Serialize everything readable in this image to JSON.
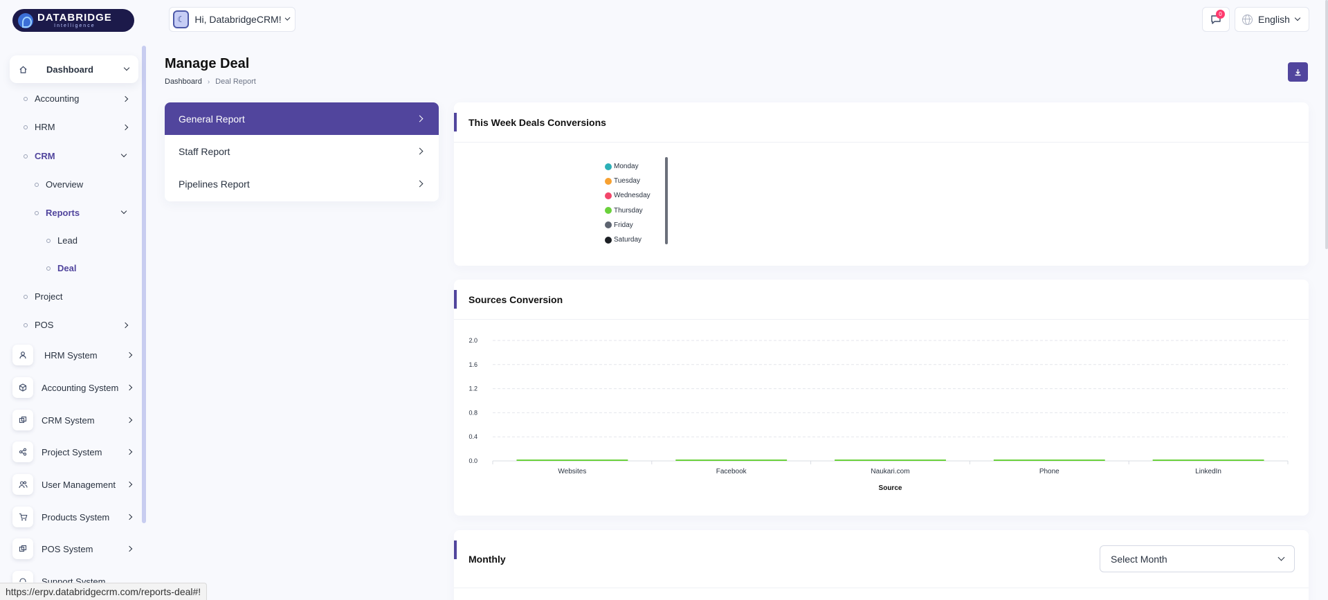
{
  "app": {
    "logo_title": "DATABRIDGE",
    "logo_subtitle": "Intelligence",
    "user_greeting": "Hi, DatabridgeCRM!",
    "notification_count": "0",
    "language": "English",
    "brand_color": "#51459d"
  },
  "sidebar": {
    "dashboard": "Dashboard",
    "subitems": {
      "accounting": "Accounting",
      "hrm": "HRM",
      "crm": "CRM",
      "overview": "Overview",
      "reports": "Reports",
      "lead": "Lead",
      "deal": "Deal",
      "project": "Project",
      "pos": "POS"
    },
    "systems": [
      {
        "label": "HRM System",
        "icon": "user-icon"
      },
      {
        "label": "Accounting System",
        "icon": "box-icon"
      },
      {
        "label": "CRM System",
        "icon": "layers-icon"
      },
      {
        "label": "Project System",
        "icon": "share-icon"
      },
      {
        "label": "User Management",
        "icon": "users-icon"
      },
      {
        "label": "Products System",
        "icon": "cart-icon"
      },
      {
        "label": "POS System",
        "icon": "layers-icon"
      },
      {
        "label": "Support System",
        "icon": "headset-icon"
      }
    ]
  },
  "page": {
    "title": "Manage Deal",
    "breadcrumb": [
      "Dashboard",
      "Deal Report"
    ]
  },
  "report_menu": [
    "General Report",
    "Staff Report",
    "Pipelines Report"
  ],
  "cards": {
    "week": "This Week Deals Conversions",
    "sources": "Sources Conversion",
    "monthly": "Monthly",
    "select_month": "Select Month"
  },
  "week_legend": [
    {
      "label": "Monday",
      "color": "#2cb0b7"
    },
    {
      "label": "Tuesday",
      "color": "#f7a131"
    },
    {
      "label": "Wednesday",
      "color": "#f2466a"
    },
    {
      "label": "Thursday",
      "color": "#6ad13b"
    },
    {
      "label": "Friday",
      "color": "#5d6470"
    },
    {
      "label": "Saturday",
      "color": "#1c1f24"
    }
  ],
  "chart_data": {
    "type": "bar",
    "categories": [
      "Websites",
      "Facebook",
      "Naukari.com",
      "Phone",
      "LinkedIn"
    ],
    "values": [
      0,
      0,
      0,
      0,
      0
    ],
    "xlabel": "Source",
    "ylabel": "",
    "ylim": [
      0,
      2.0
    ],
    "yticks": [
      "0.0",
      "0.4",
      "0.8",
      "1.2",
      "1.6",
      "2.0"
    ],
    "bar_color": "#6ad13b",
    "grid": true
  },
  "status_url": "https://erpv.databridgecrm.com/reports-deal#!"
}
